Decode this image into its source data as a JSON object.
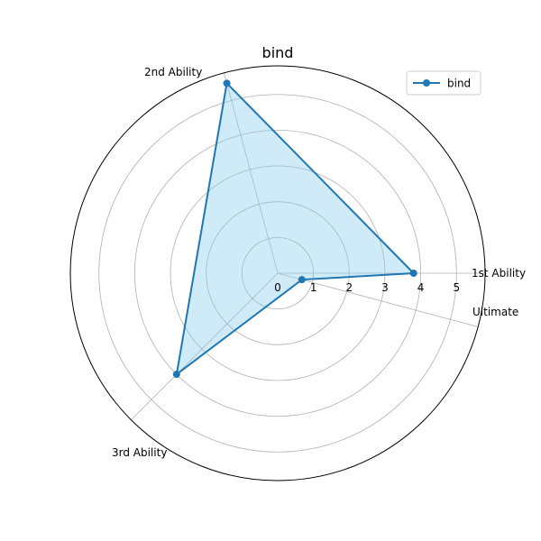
{
  "chart_data": {
    "type": "radar",
    "title": "bind",
    "categories": [
      "1st Ability",
      "2nd Ability",
      "3rd Ability",
      "Ultimate"
    ],
    "series": [
      {
        "name": "bind",
        "values": [
          3.8,
          5.5,
          4.0,
          0.7
        ]
      }
    ],
    "rlim": [
      0,
      5.8
    ],
    "radial_ticks": [
      0,
      1,
      2,
      3,
      4,
      5
    ],
    "grid": true,
    "legend": "top-right",
    "colors": {
      "line": "#1f77b4",
      "fill": "#87ceeb",
      "grid": "#b0b0b0",
      "frame": "#000000"
    }
  }
}
